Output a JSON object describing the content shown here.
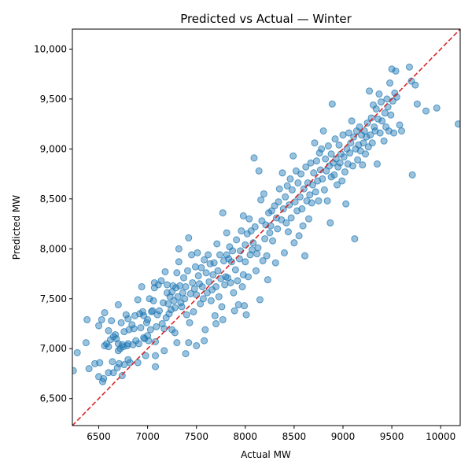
{
  "chart_data": {
    "type": "scatter",
    "title": "Predicted vs Actual — Winter",
    "xlabel": "Actual MW",
    "ylabel": "Predicted MW",
    "xlim": [
      6230,
      10200
    ],
    "ylim": [
      6230,
      10200
    ],
    "xticks": [
      6500,
      7000,
      7500,
      8000,
      8500,
      9000,
      9500,
      10000
    ],
    "xtick_labels": [
      "6500",
      "7000",
      "7500",
      "8000",
      "8500",
      "9000",
      "9500",
      "10000"
    ],
    "yticks": [
      6500,
      7000,
      7500,
      8000,
      8500,
      9000,
      9500,
      10000
    ],
    "ytick_labels": [
      "6,500",
      "7,000",
      "7,500",
      "8,000",
      "8,500",
      "9,000",
      "9,500",
      "10,000"
    ],
    "grid": false,
    "point_color": "#1f77b4",
    "point_alpha": 0.45,
    "reference_line": {
      "style": "dashed",
      "color": "#d62728",
      "from": [
        6230,
        6230
      ],
      "to": [
        10200,
        10200
      ]
    },
    "points": [
      [
        6240,
        6780
      ],
      [
        6280,
        6960
      ],
      [
        6370,
        7060
      ],
      [
        6380,
        7290
      ],
      [
        6400,
        6800
      ],
      [
        6460,
        6850
      ],
      [
        6500,
        6720
      ],
      [
        6500,
        7230
      ],
      [
        6510,
        6860
      ],
      [
        6530,
        7290
      ],
      [
        6540,
        6670
      ],
      [
        6550,
        6700
      ],
      [
        6560,
        7360
      ],
      [
        6560,
        7030
      ],
      [
        6580,
        7050
      ],
      [
        6600,
        7180
      ],
      [
        6600,
        7020
      ],
      [
        6600,
        6760
      ],
      [
        6620,
        7090
      ],
      [
        6630,
        7280
      ],
      [
        6640,
        6870
      ],
      [
        6650,
        6760
      ],
      [
        6650,
        7120
      ],
      [
        6670,
        7140
      ],
      [
        6680,
        7100
      ],
      [
        6690,
        6810
      ],
      [
        6700,
        7440
      ],
      [
        6700,
        7050
      ],
      [
        6700,
        6980
      ],
      [
        6710,
        6850
      ],
      [
        6720,
        7000
      ],
      [
        6730,
        7260
      ],
      [
        6740,
        7040
      ],
      [
        6740,
        6730
      ],
      [
        6750,
        7020
      ],
      [
        6760,
        6840
      ],
      [
        6760,
        7170
      ],
      [
        6780,
        7340
      ],
      [
        6790,
        7030
      ],
      [
        6800,
        7300
      ],
      [
        6800,
        7050
      ],
      [
        6800,
        6890
      ],
      [
        6810,
        7190
      ],
      [
        6820,
        6860
      ],
      [
        6840,
        7240
      ],
      [
        6850,
        7040
      ],
      [
        6860,
        7200
      ],
      [
        6870,
        7330
      ],
      [
        6880,
        7080
      ],
      [
        6900,
        6860
      ],
      [
        6900,
        7490
      ],
      [
        6910,
        7050
      ],
      [
        6920,
        7350
      ],
      [
        6930,
        7210
      ],
      [
        6940,
        7620
      ],
      [
        6950,
        7370
      ],
      [
        6960,
        7110
      ],
      [
        6960,
        7330
      ],
      [
        6970,
        7100
      ],
      [
        6980,
        6930
      ],
      [
        6990,
        7260
      ],
      [
        7000,
        7130
      ],
      [
        7000,
        7290
      ],
      [
        7010,
        7080
      ],
      [
        7020,
        7500
      ],
      [
        7030,
        7190
      ],
      [
        7040,
        7370
      ],
      [
        7050,
        7380
      ],
      [
        7060,
        7480
      ],
      [
        7070,
        7610
      ],
      [
        7070,
        7660
      ],
      [
        7080,
        6930
      ],
      [
        7080,
        6820
      ],
      [
        7080,
        7070
      ],
      [
        7090,
        7220
      ],
      [
        7100,
        7340
      ],
      [
        7110,
        7640
      ],
      [
        7120,
        7380
      ],
      [
        7140,
        7680
      ],
      [
        7150,
        7250
      ],
      [
        7160,
        7460
      ],
      [
        7170,
        7200
      ],
      [
        7170,
        6980
      ],
      [
        7180,
        7770
      ],
      [
        7190,
        7310
      ],
      [
        7200,
        7560
      ],
      [
        7200,
        7640
      ],
      [
        7210,
        7450
      ],
      [
        7220,
        7350
      ],
      [
        7230,
        7520
      ],
      [
        7240,
        7390
      ],
      [
        7250,
        7570
      ],
      [
        7250,
        7190
      ],
      [
        7260,
        7630
      ],
      [
        7270,
        7480
      ],
      [
        7280,
        7160
      ],
      [
        7280,
        7410
      ],
      [
        7290,
        7610
      ],
      [
        7300,
        7760
      ],
      [
        7300,
        7060
      ],
      [
        7310,
        7520
      ],
      [
        7320,
        7870
      ],
      [
        7320,
        8000
      ],
      [
        7330,
        7630
      ],
      [
        7340,
        7460
      ],
      [
        7350,
        7420
      ],
      [
        7360,
        7560
      ],
      [
        7370,
        7710
      ],
      [
        7380,
        7500
      ],
      [
        7390,
        7620
      ],
      [
        7390,
        6950
      ],
      [
        7400,
        7340
      ],
      [
        7410,
        7780
      ],
      [
        7420,
        7060
      ],
      [
        7420,
        8110
      ],
      [
        7430,
        7260
      ],
      [
        7440,
        7550
      ],
      [
        7450,
        7940
      ],
      [
        7460,
        7660
      ],
      [
        7470,
        7370
      ],
      [
        7480,
        7600
      ],
      [
        7490,
        7820
      ],
      [
        7500,
        7540
      ],
      [
        7500,
        7030
      ],
      [
        7510,
        7960
      ],
      [
        7520,
        7730
      ],
      [
        7530,
        7650
      ],
      [
        7540,
        7450
      ],
      [
        7550,
        7810
      ],
      [
        7560,
        7620
      ],
      [
        7570,
        7500
      ],
      [
        7580,
        7890
      ],
      [
        7580,
        7080
      ],
      [
        7590,
        7190
      ],
      [
        7600,
        7760
      ],
      [
        7610,
        7560
      ],
      [
        7620,
        7940
      ],
      [
        7630,
        7670
      ],
      [
        7640,
        7850
      ],
      [
        7650,
        7480
      ],
      [
        7660,
        7590
      ],
      [
        7670,
        7740
      ],
      [
        7680,
        7860
      ],
      [
        7690,
        7330
      ],
      [
        7700,
        7250
      ],
      [
        7700,
        7620
      ],
      [
        7710,
        8050
      ],
      [
        7720,
        7780
      ],
      [
        7730,
        7520
      ],
      [
        7740,
        7940
      ],
      [
        7750,
        7700
      ],
      [
        7760,
        7420
      ],
      [
        7770,
        8360
      ],
      [
        7770,
        7290
      ],
      [
        7780,
        7880
      ],
      [
        7790,
        7640
      ],
      [
        7800,
        7720
      ],
      [
        7810,
        8160
      ],
      [
        7810,
        7940
      ],
      [
        7820,
        7710
      ],
      [
        7830,
        7900
      ],
      [
        7840,
        8020
      ],
      [
        7850,
        7660
      ],
      [
        7860,
        7870
      ],
      [
        7870,
        7980
      ],
      [
        7880,
        7560
      ],
      [
        7890,
        7380
      ],
      [
        7900,
        7790
      ],
      [
        7910,
        8090
      ],
      [
        7920,
        7680
      ],
      [
        7930,
        7440
      ],
      [
        7940,
        7900
      ],
      [
        7950,
        7980
      ],
      [
        7960,
        8180
      ],
      [
        7970,
        7620
      ],
      [
        7980,
        7740
      ],
      [
        7980,
        8330
      ],
      [
        7990,
        7430
      ],
      [
        8000,
        7870
      ],
      [
        8000,
        8040
      ],
      [
        8010,
        7340
      ],
      [
        8020,
        8150
      ],
      [
        8030,
        7720
      ],
      [
        8040,
        8300
      ],
      [
        8050,
        7940
      ],
      [
        8060,
        8180
      ],
      [
        8070,
        7990
      ],
      [
        8080,
        8060
      ],
      [
        8090,
        8910
      ],
      [
        8100,
        8220
      ],
      [
        8110,
        7780
      ],
      [
        8120,
        7950
      ],
      [
        8130,
        8010
      ],
      [
        8140,
        8780
      ],
      [
        8150,
        7490
      ],
      [
        8160,
        8490
      ],
      [
        8170,
        8280
      ],
      [
        8180,
        7880
      ],
      [
        8190,
        8550
      ],
      [
        8200,
        8100
      ],
      [
        8210,
        8240
      ],
      [
        8220,
        7930
      ],
      [
        8230,
        7690
      ],
      [
        8240,
        8360
      ],
      [
        8250,
        8160
      ],
      [
        8260,
        8230
      ],
      [
        8270,
        8380
      ],
      [
        8280,
        8080
      ],
      [
        8300,
        8430
      ],
      [
        8310,
        7860
      ],
      [
        8320,
        8310
      ],
      [
        8330,
        8200
      ],
      [
        8340,
        8470
      ],
      [
        8350,
        8600
      ],
      [
        8370,
        8290
      ],
      [
        8380,
        8760
      ],
      [
        8390,
        8400
      ],
      [
        8400,
        7960
      ],
      [
        8410,
        8520
      ],
      [
        8420,
        8260
      ],
      [
        8430,
        8630
      ],
      [
        8440,
        8170
      ],
      [
        8450,
        8440
      ],
      [
        8460,
        8700
      ],
      [
        8470,
        8310
      ],
      [
        8480,
        8590
      ],
      [
        8490,
        8930
      ],
      [
        8500,
        8060
      ],
      [
        8510,
        8470
      ],
      [
        8520,
        8780
      ],
      [
        8530,
        8380
      ],
      [
        8540,
        8660
      ],
      [
        8550,
        8130
      ],
      [
        8560,
        8520
      ],
      [
        8570,
        8750
      ],
      [
        8580,
        8400
      ],
      [
        8590,
        8230
      ],
      [
        8600,
        8600
      ],
      [
        8610,
        7930
      ],
      [
        8620,
        8820
      ],
      [
        8630,
        8480
      ],
      [
        8640,
        8660
      ],
      [
        8650,
        8300
      ],
      [
        8660,
        8540
      ],
      [
        8670,
        8860
      ],
      [
        8680,
        8460
      ],
      [
        8690,
        8640
      ],
      [
        8700,
        8760
      ],
      [
        8710,
        9060
      ],
      [
        8720,
        8570
      ],
      [
        8730,
        8880
      ],
      [
        8740,
        8680
      ],
      [
        8750,
        8480
      ],
      [
        8760,
        8960
      ],
      [
        8770,
        8790
      ],
      [
        8780,
        9000
      ],
      [
        8790,
        8700
      ],
      [
        8800,
        9180
      ],
      [
        8810,
        8590
      ],
      [
        8820,
        8900
      ],
      [
        8830,
        8780
      ],
      [
        8840,
        8480
      ],
      [
        8850,
        9030
      ],
      [
        8860,
        8830
      ],
      [
        8870,
        8260
      ],
      [
        8880,
        8950
      ],
      [
        8880,
        8720
      ],
      [
        8890,
        9450
      ],
      [
        8900,
        8860
      ],
      [
        8910,
        8740
      ],
      [
        8920,
        9100
      ],
      [
        8930,
        8900
      ],
      [
        8940,
        8640
      ],
      [
        8950,
        8820
      ],
      [
        8960,
        9040
      ],
      [
        8970,
        8860
      ],
      [
        8980,
        8950
      ],
      [
        8990,
        8680
      ],
      [
        9000,
        9140
      ],
      [
        9010,
        8920
      ],
      [
        9020,
        8770
      ],
      [
        9030,
        8450
      ],
      [
        9040,
        9000
      ],
      [
        9050,
        8850
      ],
      [
        9060,
        9160
      ],
      [
        9070,
        8960
      ],
      [
        9080,
        9060
      ],
      [
        9090,
        9280
      ],
      [
        9100,
        8830
      ],
      [
        9110,
        9120
      ],
      [
        9120,
        8100
      ],
      [
        9130,
        9000
      ],
      [
        9140,
        9180
      ],
      [
        9150,
        8890
      ],
      [
        9160,
        9040
      ],
      [
        9170,
        9220
      ],
      [
        9180,
        8980
      ],
      [
        9190,
        9140
      ],
      [
        9200,
        8840
      ],
      [
        9210,
        9060
      ],
      [
        9220,
        9180
      ],
      [
        9230,
        8950
      ],
      [
        9240,
        9120
      ],
      [
        9250,
        9260
      ],
      [
        9260,
        9020
      ],
      [
        9270,
        9580
      ],
      [
        9280,
        9140
      ],
      [
        9290,
        9310
      ],
      [
        9300,
        9060
      ],
      [
        9310,
        9440
      ],
      [
        9320,
        9220
      ],
      [
        9330,
        9180
      ],
      [
        9340,
        9400
      ],
      [
        9350,
        8850
      ],
      [
        9360,
        9300
      ],
      [
        9370,
        9550
      ],
      [
        9380,
        9160
      ],
      [
        9390,
        9470
      ],
      [
        9400,
        9280
      ],
      [
        9420,
        9080
      ],
      [
        9430,
        9360
      ],
      [
        9440,
        9220
      ],
      [
        9450,
        9500
      ],
      [
        9460,
        9420
      ],
      [
        9470,
        9180
      ],
      [
        9480,
        9660
      ],
      [
        9490,
        9340
      ],
      [
        9500,
        9800
      ],
      [
        9510,
        9480
      ],
      [
        9520,
        9160
      ],
      [
        9530,
        9560
      ],
      [
        9540,
        9780
      ],
      [
        9550,
        9520
      ],
      [
        9580,
        9240
      ],
      [
        9600,
        9180
      ],
      [
        9680,
        9820
      ],
      [
        9700,
        9680
      ],
      [
        9710,
        8740
      ],
      [
        9740,
        9640
      ],
      [
        9760,
        9450
      ],
      [
        9850,
        9380
      ],
      [
        9960,
        9410
      ],
      [
        10180,
        9250
      ]
    ]
  }
}
